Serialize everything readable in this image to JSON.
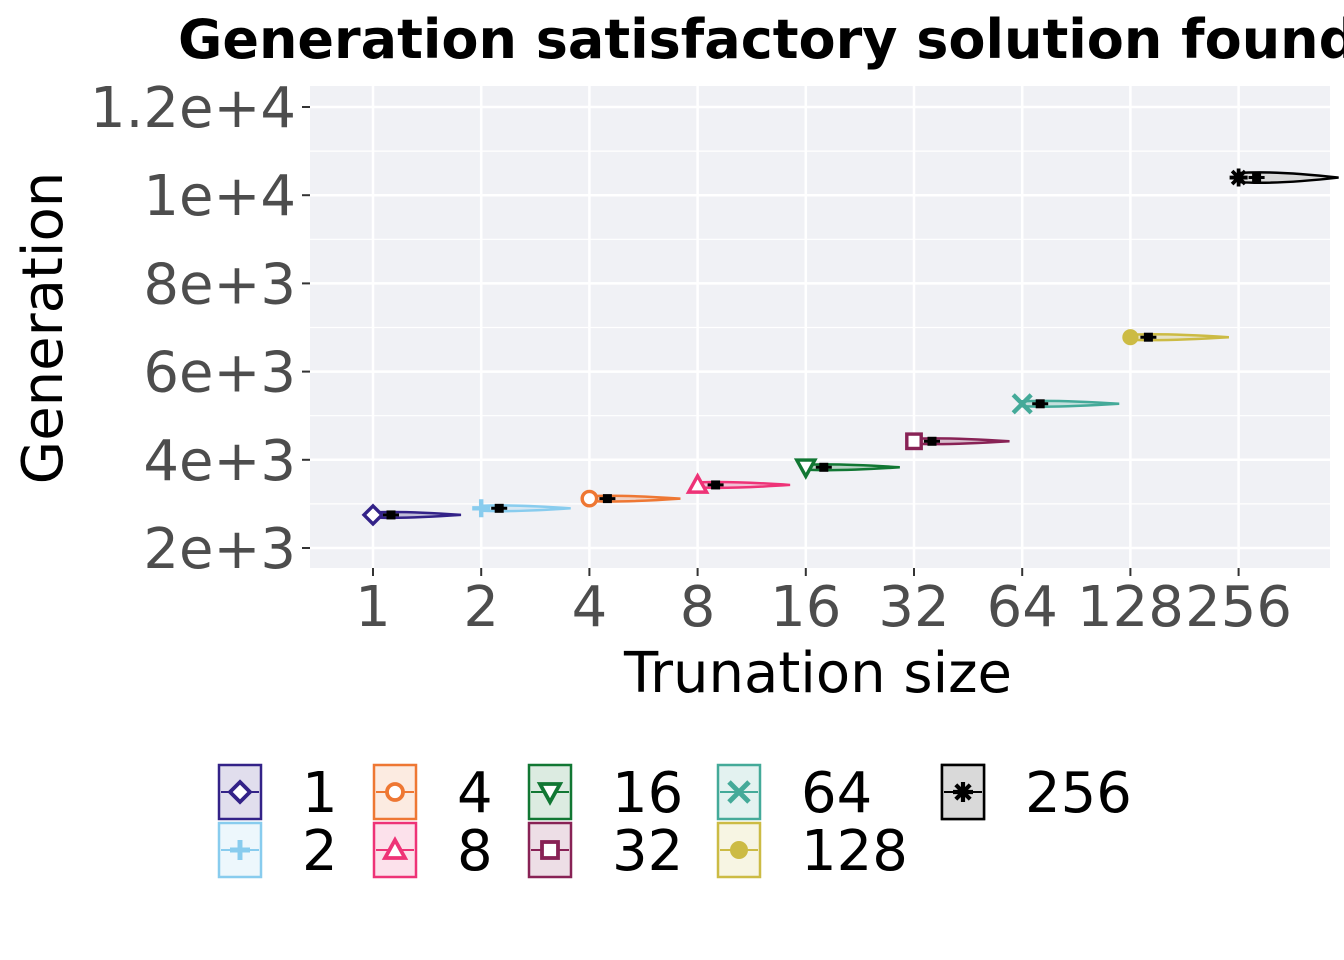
{
  "chart_data": {
    "type": "violin",
    "title": "Generation satisfactory solution found",
    "xlabel": "Trunation size",
    "ylabel": "Generation",
    "x_scale": "log2",
    "categories": [
      "1",
      "2",
      "4",
      "8",
      "16",
      "32",
      "64",
      "128",
      "256"
    ],
    "y_ticks": [
      "2e+3",
      "4e+3",
      "6e+3",
      "8e+3",
      "1e+4",
      "1.2e+4"
    ],
    "ylim": [
      1600,
      12500
    ],
    "grid": true,
    "legend_position": "bottom",
    "series": [
      {
        "name": "1",
        "x": 1,
        "median": 2750,
        "spread": 2800,
        "color": "#332288",
        "shape": "diamond"
      },
      {
        "name": "2",
        "x": 2,
        "median": 2900,
        "spread": 2900,
        "color": "#88CCEE",
        "shape": "plus"
      },
      {
        "name": "4",
        "x": 4,
        "median": 3120,
        "spread": 3000,
        "color": "#EE7733",
        "shape": "circle-open"
      },
      {
        "name": "8",
        "x": 8,
        "median": 3430,
        "spread": 3300,
        "color": "#EE3377",
        "shape": "triangle-up"
      },
      {
        "name": "16",
        "x": 16,
        "median": 3830,
        "spread": 3400,
        "color": "#117733",
        "shape": "triangle-down"
      },
      {
        "name": "32",
        "x": 32,
        "median": 4420,
        "spread": 3400,
        "color": "#882255",
        "shape": "square"
      },
      {
        "name": "64",
        "x": 64,
        "median": 5270,
        "spread": 3400,
        "color": "#44AA99",
        "shape": "x"
      },
      {
        "name": "128",
        "x": 128,
        "median": 6780,
        "spread": 3400,
        "color": "#CCBB44",
        "shape": "circle"
      },
      {
        "name": "256",
        "x": 256,
        "median": 10400,
        "spread": 3600,
        "color": "#000000",
        "shape": "asterisk"
      }
    ]
  }
}
